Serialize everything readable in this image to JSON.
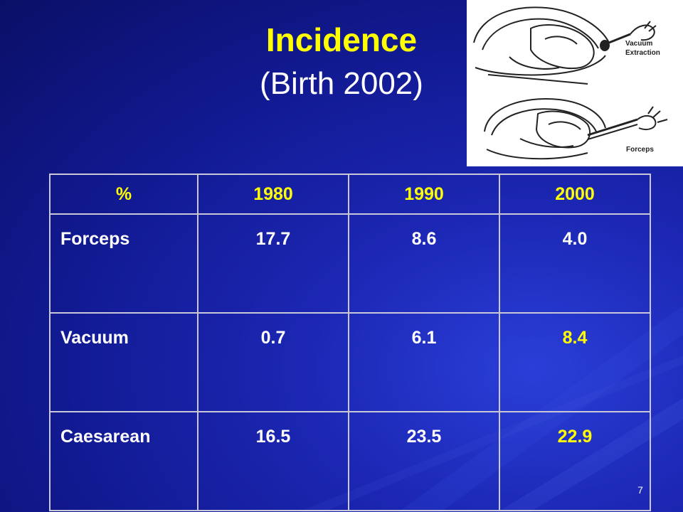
{
  "slide": {
    "title": "Incidence",
    "subtitle": "(Birth 2002)",
    "page_number": "7"
  },
  "illustration": {
    "top_label_line1": "Vacuum",
    "top_label_line2": "Extraction",
    "bottom_label": "Forceps"
  },
  "table": {
    "headers": [
      "%",
      "1980",
      "1990",
      "2000"
    ],
    "rows": [
      {
        "label": "Forceps",
        "values": [
          "17.7",
          "8.6",
          "4.0"
        ]
      },
      {
        "label": "Vacuum",
        "values": [
          "0.7",
          "6.1",
          "8.4"
        ]
      },
      {
        "label": "Caesarean",
        "values": [
          "16.5",
          "23.5",
          "22.9"
        ]
      }
    ]
  },
  "colors": {
    "background": "#121a93",
    "title": "#ffff00",
    "header_text": "#ffff00",
    "body_text": "#ffffff",
    "grid": "#c8c8d8"
  }
}
